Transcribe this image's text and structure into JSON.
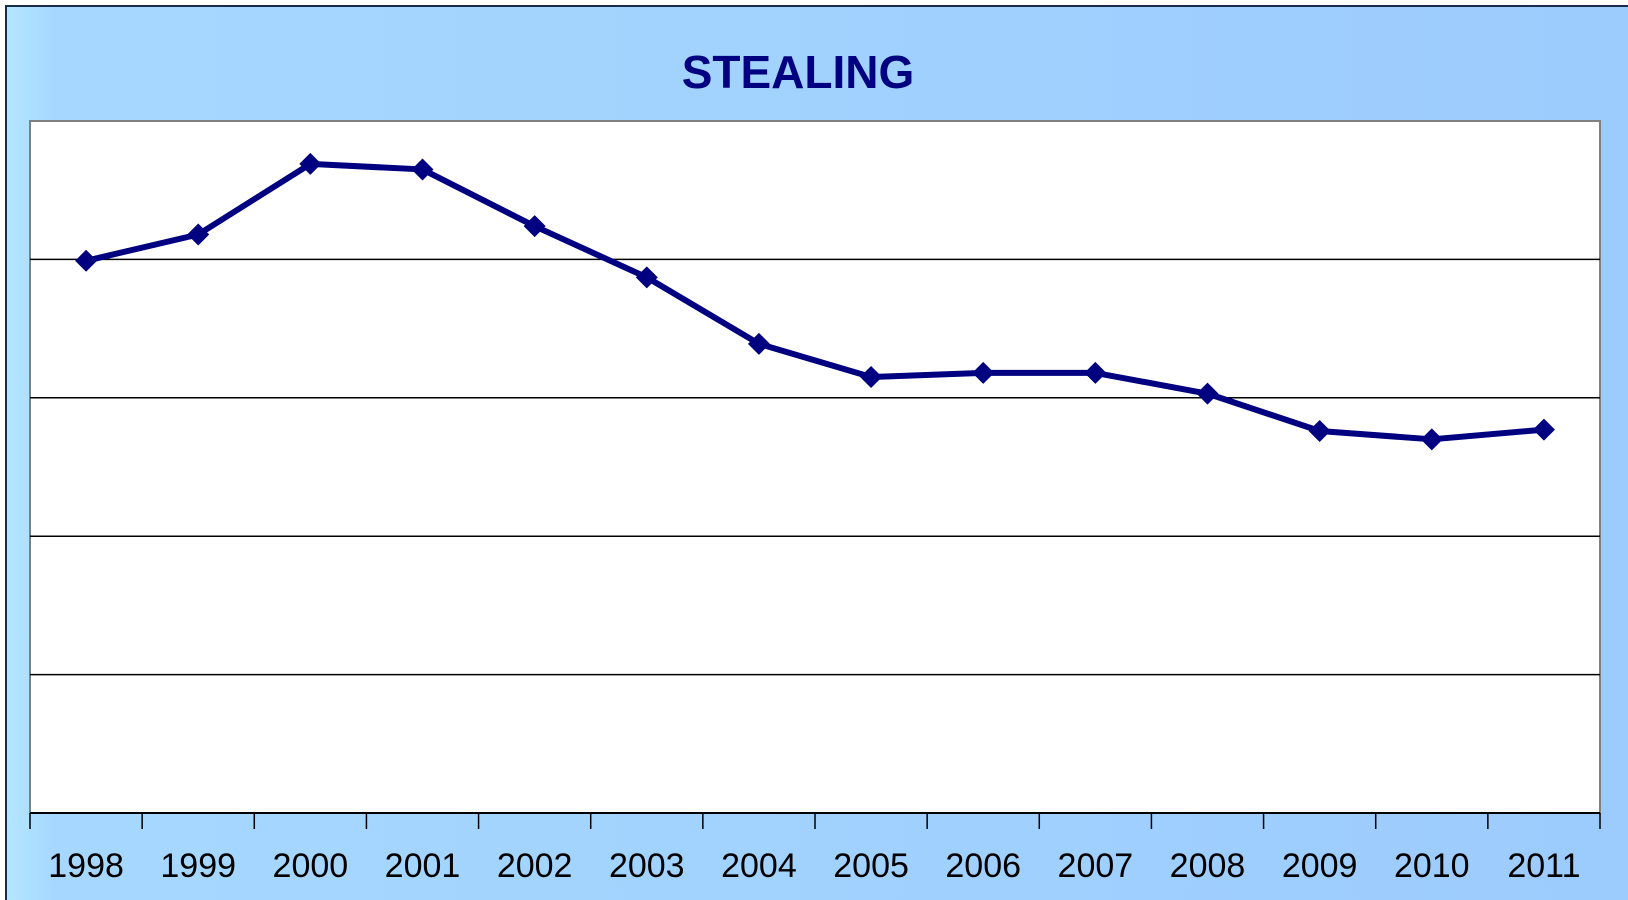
{
  "chart_data": {
    "type": "line",
    "title": "STEALING",
    "categories": [
      "1998",
      "1999",
      "2000",
      "2001",
      "2002",
      "2003",
      "2004",
      "2005",
      "2006",
      "2007",
      "2008",
      "2009",
      "2010",
      "2011"
    ],
    "series": [
      {
        "color": "#000080",
        "values": [
          3.99,
          4.18,
          4.69,
          4.65,
          4.24,
          3.87,
          3.39,
          3.15,
          3.18,
          3.18,
          3.03,
          2.76,
          2.7,
          2.77
        ]
      }
    ],
    "ylim": [
      0,
      5
    ],
    "yticks": [
      1,
      2,
      3,
      4
    ],
    "grid": true
  }
}
